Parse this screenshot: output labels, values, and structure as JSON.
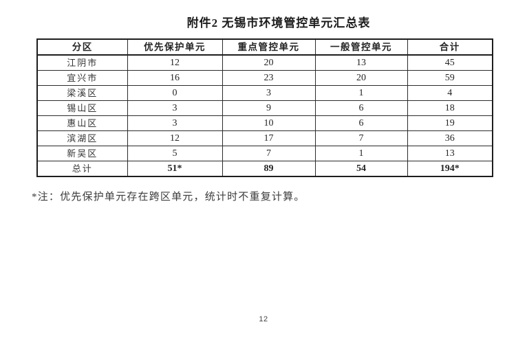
{
  "document": {
    "title": "附件2 无锡市环境管控单元汇总表",
    "footnote": "*注：优先保护单元存在跨区单元，统计时不重复计算。",
    "page_number": "12"
  },
  "table": {
    "headers": [
      "分区",
      "优先保护单元",
      "重点管控单元",
      "一般管控单元",
      "合计"
    ],
    "rows": [
      [
        "江阴市",
        "12",
        "20",
        "13",
        "45"
      ],
      [
        "宜兴市",
        "16",
        "23",
        "20",
        "59"
      ],
      [
        "梁溪区",
        "0",
        "3",
        "1",
        "4"
      ],
      [
        "锡山区",
        "3",
        "9",
        "6",
        "18"
      ],
      [
        "惠山区",
        "3",
        "10",
        "6",
        "19"
      ],
      [
        "滨湖区",
        "12",
        "17",
        "7",
        "36"
      ],
      [
        "新吴区",
        "5",
        "7",
        "1",
        "13"
      ]
    ],
    "total_row": [
      "总计",
      "51*",
      "89",
      "54",
      "194*"
    ]
  }
}
